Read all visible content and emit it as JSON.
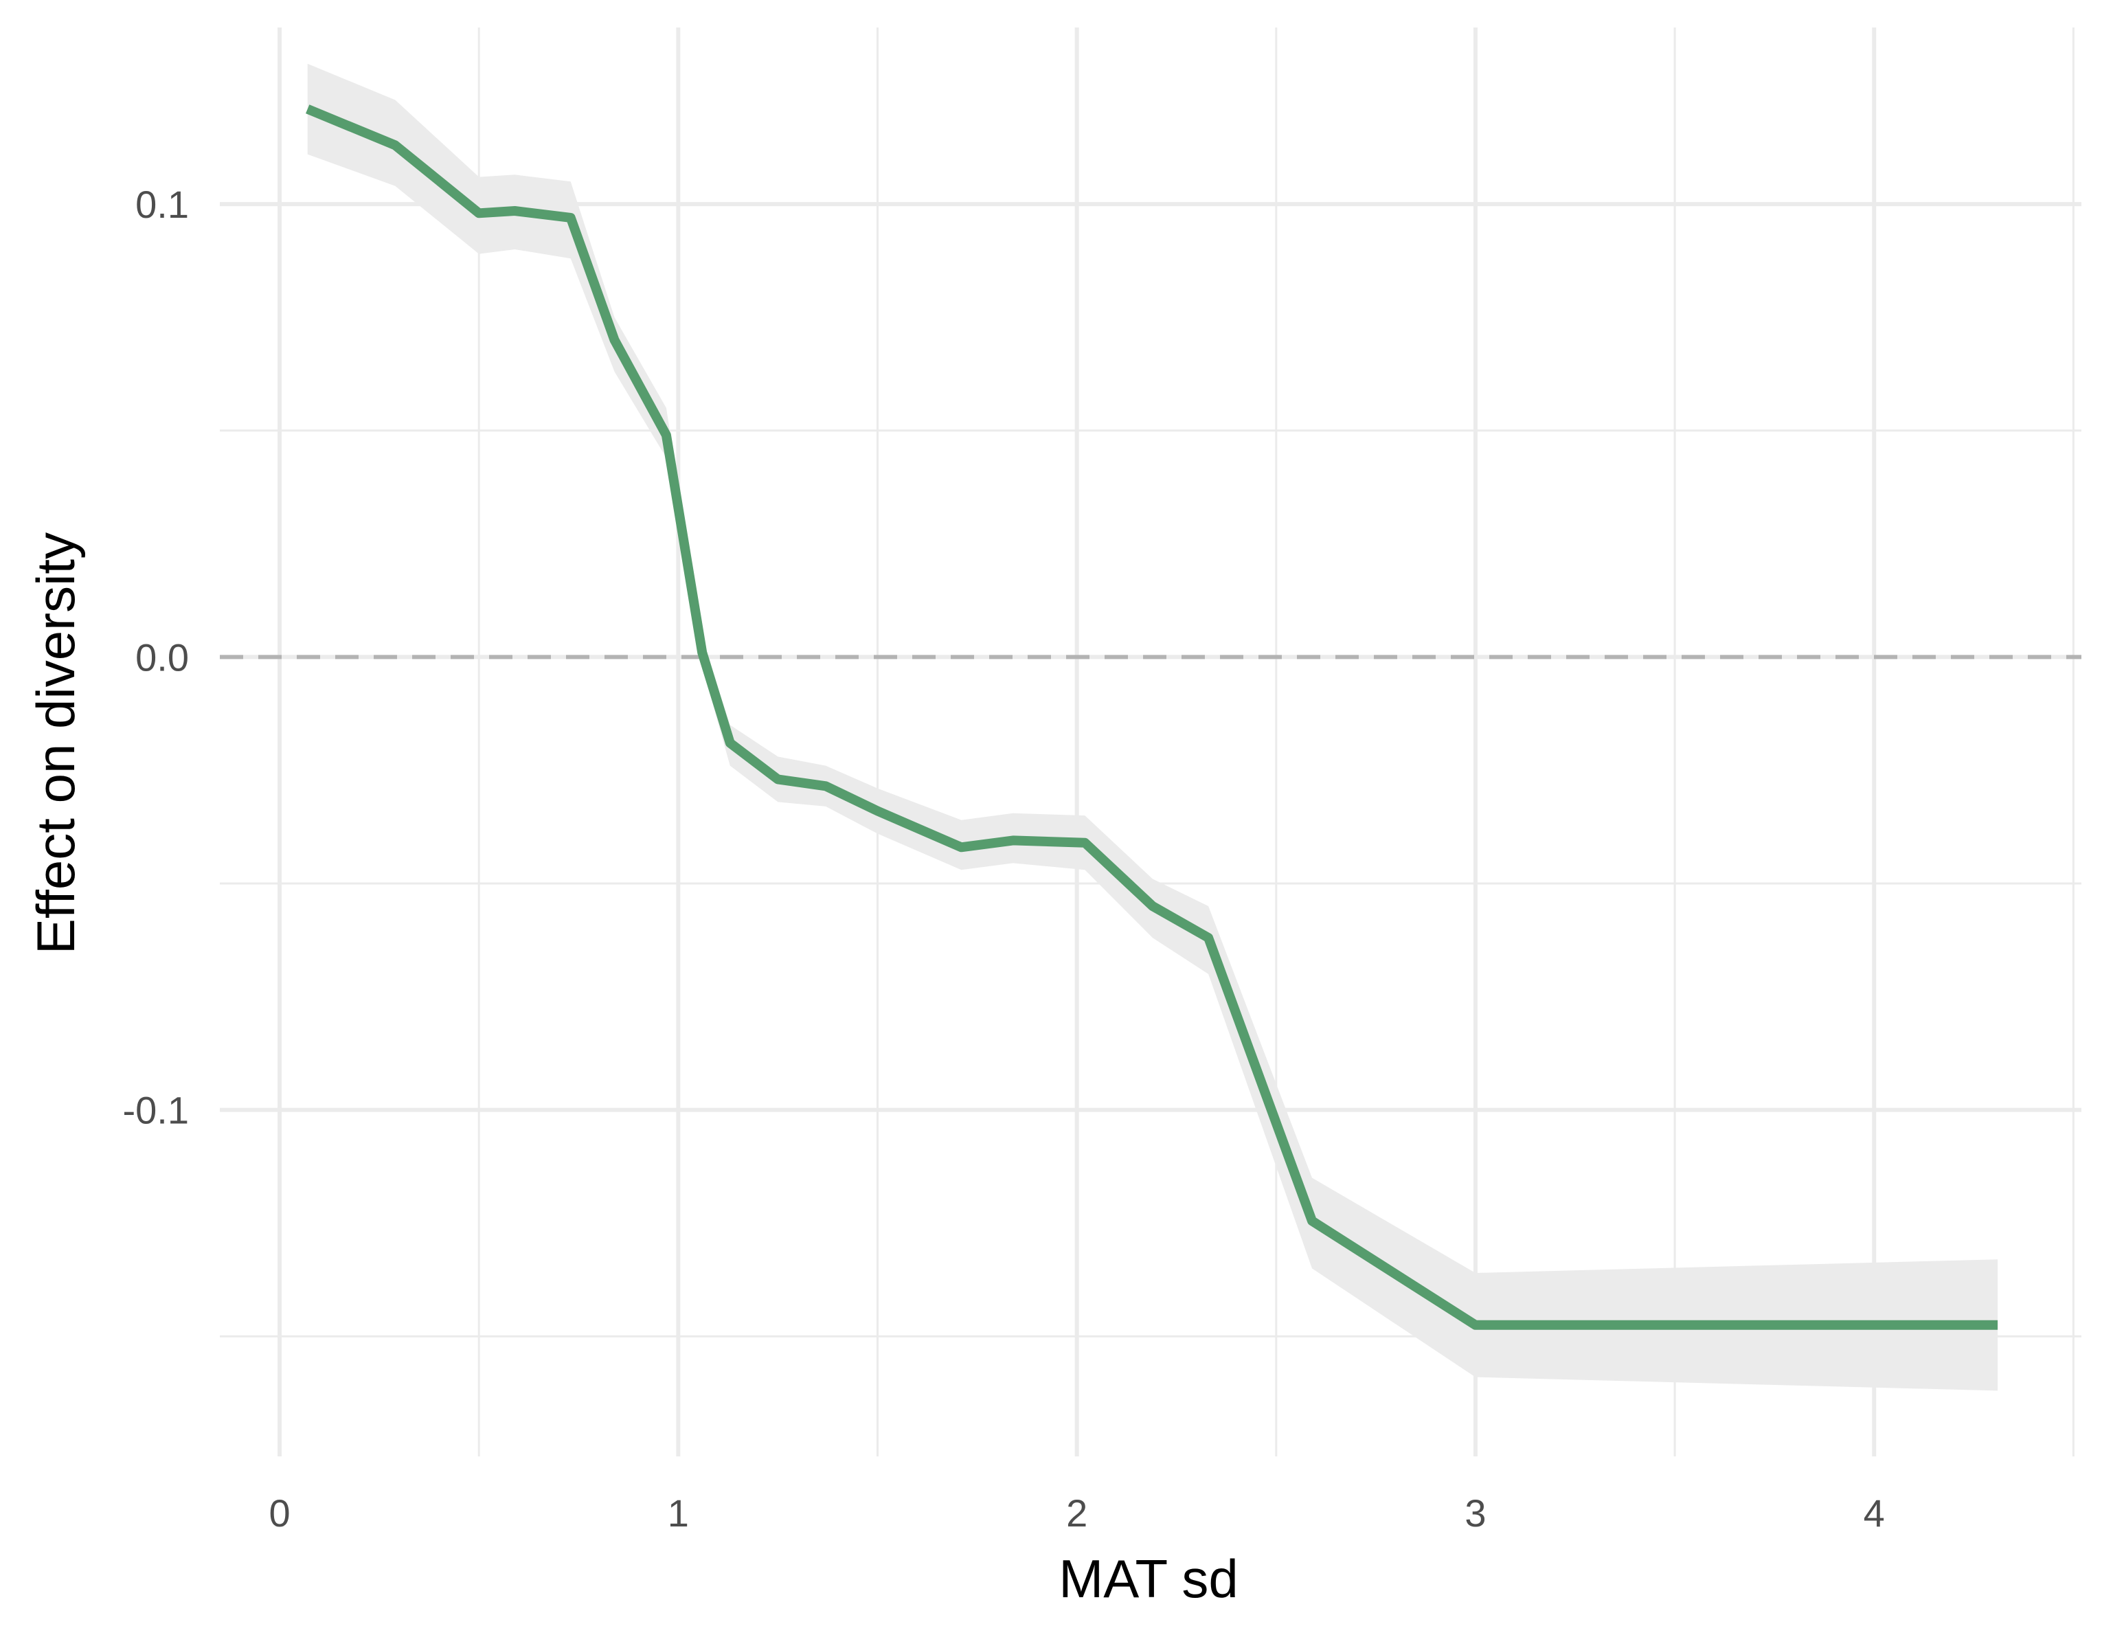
{
  "chart_data": {
    "type": "line",
    "title": "",
    "xlabel": "MAT sd",
    "ylabel": "Effect on diversity",
    "xlim": [
      -0.15,
      4.52
    ],
    "ylim": [
      -0.1765,
      0.139
    ],
    "x_ticks": [
      0,
      1,
      2,
      3,
      4
    ],
    "x_tick_labels": [
      "0",
      "1",
      "2",
      "3",
      "4"
    ],
    "x_minor_ticks": [
      0.5,
      1.5,
      2.5,
      3.5,
      4.5
    ],
    "y_ticks": [
      0.1,
      0.0,
      -0.1
    ],
    "y_tick_labels": [
      "0.1",
      "0.0",
      "-0.1"
    ],
    "y_minor_ticks": [
      0.05,
      -0.05,
      -0.15
    ],
    "grid": true,
    "reference_line": {
      "y": 0,
      "style": "dashed",
      "color": "#b3b3b3"
    },
    "series": [
      {
        "name": "Effect on diversity",
        "color": "#569c6d",
        "band_color": "#ebebeb",
        "x": [
          0.07,
          0.29,
          0.5,
          0.59,
          0.73,
          0.84,
          0.97,
          1.06,
          1.13,
          1.25,
          1.37,
          1.5,
          1.71,
          1.84,
          2.02,
          2.19,
          2.33,
          2.59,
          3.0,
          4.31
        ],
        "y": [
          0.121,
          0.113,
          0.098,
          0.0985,
          0.097,
          0.07,
          0.049,
          0.001,
          -0.019,
          -0.027,
          -0.0285,
          -0.034,
          -0.042,
          -0.0405,
          -0.041,
          -0.055,
          -0.062,
          -0.1245,
          -0.1475,
          -0.1475
        ],
        "upper": [
          0.131,
          0.123,
          0.106,
          0.1065,
          0.105,
          0.075,
          0.055,
          0.004,
          -0.015,
          -0.022,
          -0.024,
          -0.029,
          -0.036,
          -0.0345,
          -0.035,
          -0.049,
          -0.055,
          -0.115,
          -0.136,
          -0.133
        ],
        "lower": [
          0.111,
          0.104,
          0.089,
          0.09,
          0.088,
          0.063,
          0.044,
          -0.002,
          -0.024,
          -0.032,
          -0.033,
          -0.039,
          -0.047,
          -0.0455,
          -0.047,
          -0.062,
          -0.07,
          -0.135,
          -0.159,
          -0.162
        ]
      }
    ]
  }
}
